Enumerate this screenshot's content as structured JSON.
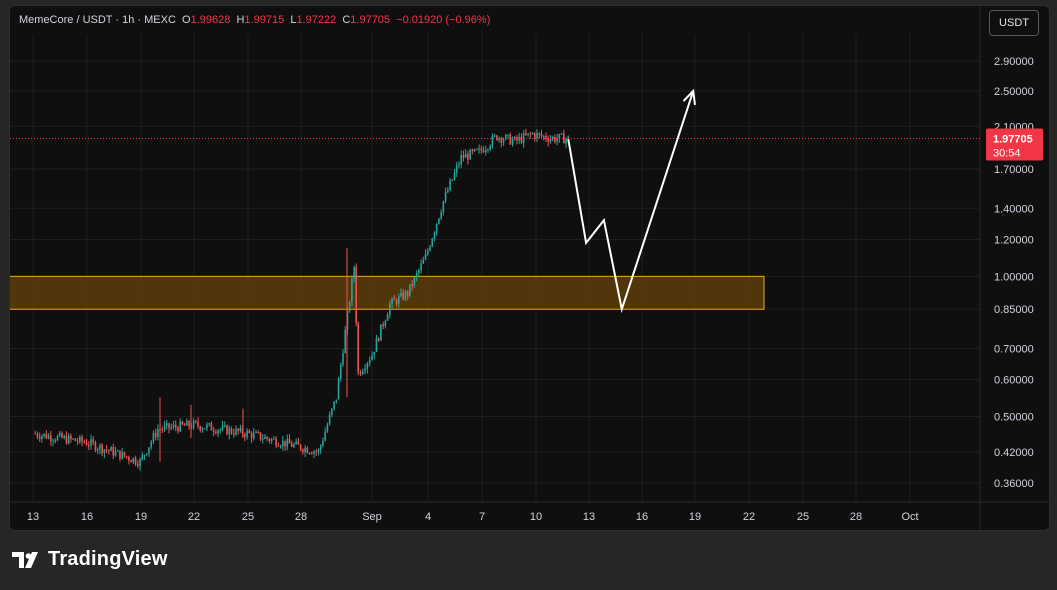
{
  "legend": {
    "symbol": "MemeCore / USDT · 1h · MEXC",
    "o_label": "O",
    "o_value": "1.99628",
    "h_label": "H",
    "h_value": "1.99715",
    "l_label": "L",
    "l_value": "1.97222",
    "c_label": "C",
    "c_value": "1.97705",
    "change": "−0.01920 (−0.96%)"
  },
  "currency_button": "USDT",
  "price_badge": {
    "price": "1.97705",
    "countdown": "30:54"
  },
  "brand": {
    "name": "TradingView"
  },
  "colors": {
    "up": "#26a69a",
    "down": "#ef5350",
    "zone_border": "#f7a21b",
    "zone_fill": "#5c3d0a",
    "badge": "#f23645",
    "arrow": "#ffffff"
  },
  "chart_data": {
    "type": "candlestick",
    "y_scale": "log",
    "y_ticks": [
      "2.90000",
      "2.50000",
      "2.10000",
      "1.70000",
      "1.40000",
      "1.20000",
      "1.00000",
      "0.85000",
      "0.70000",
      "0.60000",
      "0.50000",
      "0.42000",
      "0.36000"
    ],
    "x_ticks": [
      "13",
      "16",
      "19",
      "22",
      "25",
      "28",
      "Sep",
      "4",
      "7",
      "10",
      "13",
      "16",
      "19",
      "22",
      "25",
      "28",
      "Oct"
    ],
    "current_price": 1.97705,
    "support_zone": {
      "low": 0.85,
      "high": 1.0,
      "from": "13",
      "to": "22"
    },
    "price_path": [
      {
        "day": "13",
        "price": 0.46
      },
      {
        "day": "16",
        "price": 0.44
      },
      {
        "day": "19",
        "price": 0.4
      },
      {
        "day": "20",
        "price": 0.47
      },
      {
        "day": "22",
        "price": 0.48
      },
      {
        "day": "25",
        "price": 0.46
      },
      {
        "day": "28",
        "price": 0.43
      },
      {
        "day": "29",
        "price": 0.42
      },
      {
        "day": "30",
        "price": 0.55
      },
      {
        "day": "31",
        "price": 1.05
      },
      {
        "day": "31",
        "price": 0.62
      },
      {
        "day": "Sep",
        "price": 0.68
      },
      {
        "day": "2",
        "price": 0.87
      },
      {
        "day": "3",
        "price": 0.92
      },
      {
        "day": "4",
        "price": 1.1
      },
      {
        "day": "5",
        "price": 1.45
      },
      {
        "day": "6",
        "price": 1.8
      },
      {
        "day": "7",
        "price": 1.85
      },
      {
        "day": "8",
        "price": 2.0
      },
      {
        "day": "9",
        "price": 1.95
      },
      {
        "day": "10",
        "price": 2.02
      },
      {
        "day": "11",
        "price": 1.98
      },
      {
        "day": "12",
        "price": 1.977
      }
    ],
    "projection": [
      {
        "day": "12",
        "price": 1.97
      },
      {
        "day": "13",
        "price": 1.18
      },
      {
        "day": "14",
        "price": 1.32
      },
      {
        "day": "15",
        "price": 0.85
      },
      {
        "day": "19",
        "price": 2.5
      }
    ]
  }
}
